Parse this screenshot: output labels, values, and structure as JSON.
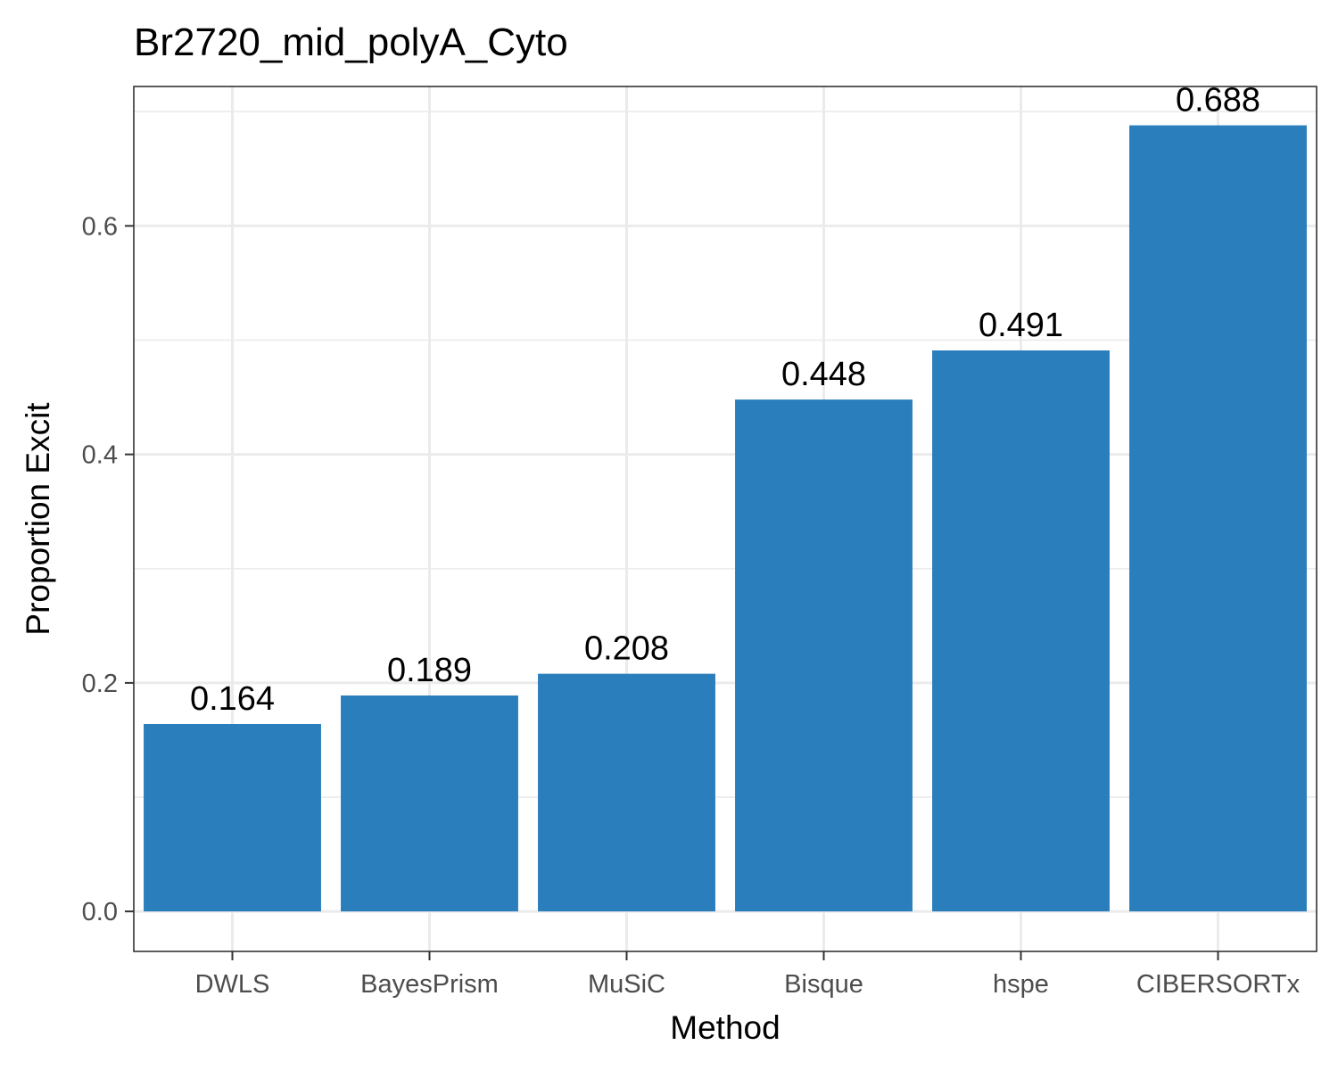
{
  "chart_data": {
    "type": "bar",
    "title": "Br2720_mid_polyA_Cyto",
    "xlabel": "Method",
    "ylabel": "Proportion Excit",
    "categories": [
      "DWLS",
      "BayesPrism",
      "MuSiC",
      "Bisque",
      "hspe",
      "CIBERSORTx"
    ],
    "values": [
      0.164,
      0.189,
      0.208,
      0.448,
      0.491,
      0.688
    ],
    "data_labels": [
      "0.164",
      "0.189",
      "0.208",
      "0.448",
      "0.491",
      "0.688"
    ],
    "yticks": [
      "0.0",
      "0.2",
      "0.4",
      "0.6"
    ],
    "ytick_values": [
      0,
      0.2,
      0.4,
      0.6
    ],
    "ylim": [
      -0.035,
      0.722
    ],
    "grid": true,
    "legend": "none",
    "colors": {
      "bar": "#2A7EBB",
      "grid": "#EBEBEB",
      "panel_border": "#333333",
      "tick": "#333333"
    }
  }
}
